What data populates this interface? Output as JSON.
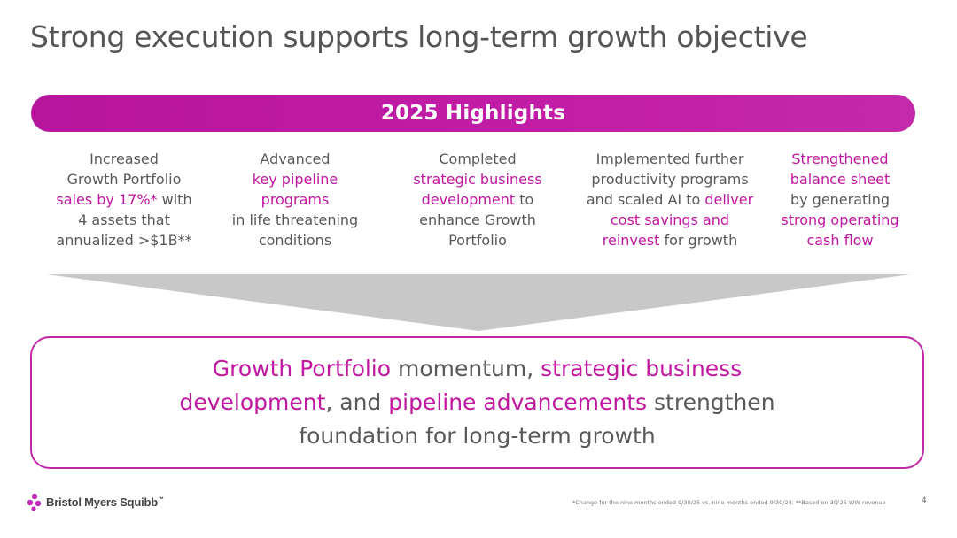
{
  "slide": {
    "title": "Strong execution supports long-term growth objective",
    "banner": "2025 Highlights",
    "columns": [
      {
        "lines": [
          [
            {
              "t": "Increased",
              "h": false
            }
          ],
          [
            {
              "t": "Growth Portfolio",
              "h": false
            }
          ],
          [
            {
              "t": "sales by 17%*",
              "h": true
            },
            {
              "t": " with",
              "h": false
            }
          ],
          [
            {
              "t": "4 assets that",
              "h": false
            }
          ],
          [
            {
              "t": "annualized >$1B**",
              "h": false
            }
          ]
        ]
      },
      {
        "lines": [
          [
            {
              "t": "Advanced",
              "h": false
            }
          ],
          [
            {
              "t": "key pipeline",
              "h": true
            }
          ],
          [
            {
              "t": "programs",
              "h": true
            }
          ],
          [
            {
              "t": "in life threatening",
              "h": false
            }
          ],
          [
            {
              "t": "conditions",
              "h": false
            }
          ]
        ]
      },
      {
        "lines": [
          [
            {
              "t": "Completed",
              "h": false
            }
          ],
          [
            {
              "t": "strategic business",
              "h": true
            }
          ],
          [
            {
              "t": "development",
              "h": true
            },
            {
              "t": " to",
              "h": false
            }
          ],
          [
            {
              "t": "enhance Growth",
              "h": false
            }
          ],
          [
            {
              "t": "Portfolio",
              "h": false
            }
          ]
        ]
      },
      {
        "lines": [
          [
            {
              "t": "Implemented further",
              "h": false
            }
          ],
          [
            {
              "t": "productivity programs",
              "h": false
            }
          ],
          [
            {
              "t": "and scaled AI to ",
              "h": false
            },
            {
              "t": "deliver",
              "h": true
            }
          ],
          [
            {
              "t": "cost savings and",
              "h": true
            }
          ],
          [
            {
              "t": "reinvest",
              "h": true
            },
            {
              "t": " for growth",
              "h": false
            }
          ]
        ]
      },
      {
        "lines": [
          [
            {
              "t": "Strengthened",
              "h": true
            }
          ],
          [
            {
              "t": "balance sheet",
              "h": true
            }
          ],
          [
            {
              "t": "by generating",
              "h": false
            }
          ],
          [
            {
              "t": "strong operating",
              "h": true
            }
          ],
          [
            {
              "t": "cash flow",
              "h": true
            }
          ]
        ]
      }
    ],
    "summary_lines": [
      [
        {
          "t": "Growth Portfolio",
          "h": true
        },
        {
          "t": " momentum, ",
          "h": false
        },
        {
          "t": "strategic business",
          "h": true
        }
      ],
      [
        {
          "t": "development",
          "h": true
        },
        {
          "t": ", and ",
          "h": false
        },
        {
          "t": "pipeline advancements",
          "h": true
        },
        {
          "t": " strengthen",
          "h": false
        }
      ],
      [
        {
          "t": "foundation for long-term growth",
          "h": false
        }
      ]
    ],
    "logo_text": "Bristol Myers Squibb",
    "logo_mark": "™",
    "footnote": "*Change for the nine months ended 9/30/25 vs. nine months ended 9/30/24; **Based on 3Q'25 WW revenue",
    "page_number": "4"
  },
  "colors": {
    "accent": "#c0189f",
    "banner": "#c21da6",
    "text": "#595959",
    "arrow": "#c8c8c8"
  },
  "icons": {
    "logo": "bms-molecule-logo-icon",
    "arrow": "downward-funnel-arrow"
  }
}
